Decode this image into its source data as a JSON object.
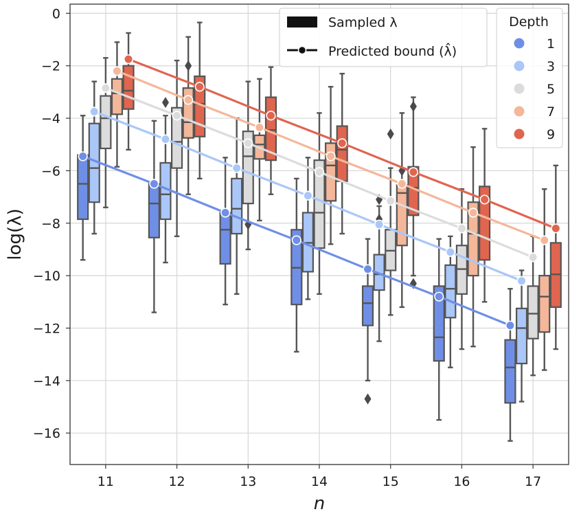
{
  "chart_data": {
    "type": "box",
    "xlabel": "n",
    "ylabel": "log(λ)",
    "categories": [
      11,
      12,
      13,
      14,
      15,
      16,
      17
    ],
    "ylim": [
      -17.2,
      0.35
    ],
    "yticks": [
      0,
      -2,
      -4,
      -6,
      -8,
      -10,
      -12,
      -14,
      -16
    ],
    "ytick_labels": [
      "0",
      "−2",
      "−4",
      "−6",
      "−8",
      "−10",
      "−12",
      "−14",
      "−16"
    ],
    "grid": true,
    "legend_style": {
      "title": "",
      "position": "top-center",
      "items": [
        {
          "label": "Sampled λ",
          "kind": "box"
        },
        {
          "label": "Predicted bound (λ̂)",
          "kind": "line-marker"
        }
      ]
    },
    "legend_depth": {
      "title": "Depth",
      "position": "top-right",
      "items": [
        "1",
        "3",
        "5",
        "7",
        "9"
      ]
    },
    "colors": {
      "depth_1": "#6f8fe6",
      "depth_3": "#aac7f8",
      "depth_5": "#dcdcdc",
      "depth_7": "#f4b79a",
      "depth_9": "#e0654f",
      "box_edge": "#555555"
    },
    "sampled": [
      {
        "depth": 1,
        "boxes": [
          {
            "n": 11,
            "whislo": -9.4,
            "q1": -7.85,
            "med": -6.5,
            "q3": -5.4,
            "whishi": -3.9,
            "fliers": []
          },
          {
            "n": 12,
            "whislo": -11.4,
            "q1": -8.55,
            "med": -7.25,
            "q3": -6.5,
            "whishi": -4.1,
            "fliers": []
          },
          {
            "n": 13,
            "whislo": -11.1,
            "q1": -9.55,
            "med": -8.25,
            "q3": -7.6,
            "whishi": -5.5,
            "fliers": []
          },
          {
            "n": 14,
            "whislo": -12.9,
            "q1": -11.1,
            "med": -9.7,
            "q3": -8.25,
            "whishi": -6.3,
            "fliers": []
          },
          {
            "n": 15,
            "whislo": -14.0,
            "q1": -11.9,
            "med": -11.05,
            "q3": -10.4,
            "whishi": -8.6,
            "fliers": [
              -14.7
            ]
          },
          {
            "n": 16,
            "whislo": -15.5,
            "q1": -13.25,
            "med": -12.35,
            "q3": -10.4,
            "whishi": -8.6,
            "fliers": []
          },
          {
            "n": 17,
            "whislo": -16.3,
            "q1": -14.85,
            "med": -13.5,
            "q3": -12.45,
            "whishi": -10.5,
            "fliers": []
          }
        ]
      },
      {
        "depth": 3,
        "boxes": [
          {
            "n": 11,
            "whislo": -8.4,
            "q1": -7.2,
            "med": -5.9,
            "q3": -4.2,
            "whishi": -2.6,
            "fliers": []
          },
          {
            "n": 12,
            "whislo": -9.5,
            "q1": -7.85,
            "med": -6.9,
            "q3": -5.7,
            "whishi": -3.9,
            "fliers": [
              -3.4
            ]
          },
          {
            "n": 13,
            "whislo": -10.7,
            "q1": -8.4,
            "med": -7.45,
            "q3": -6.3,
            "whishi": -4.0,
            "fliers": []
          },
          {
            "n": 14,
            "whislo": -10.9,
            "q1": -9.85,
            "med": -8.75,
            "q3": -7.6,
            "whishi": -5.5,
            "fliers": []
          },
          {
            "n": 15,
            "whislo": -12.5,
            "q1": -10.55,
            "med": -9.95,
            "q3": -9.2,
            "whishi": -7.35,
            "fliers": [
              -7.1,
              -7.85
            ]
          },
          {
            "n": 16,
            "whislo": -13.5,
            "q1": -11.6,
            "med": -10.5,
            "q3": -9.6,
            "whishi": -8.5,
            "fliers": []
          },
          {
            "n": 17,
            "whislo": -14.8,
            "q1": -13.35,
            "med": -12.0,
            "q3": -11.25,
            "whishi": -9.8,
            "fliers": []
          }
        ]
      },
      {
        "depth": 5,
        "boxes": [
          {
            "n": 11,
            "whislo": -7.4,
            "q1": -5.15,
            "med": -4.0,
            "q3": -3.15,
            "whishi": -1.7,
            "fliers": []
          },
          {
            "n": 12,
            "whislo": -8.5,
            "q1": -5.9,
            "med": -4.9,
            "q3": -3.6,
            "whishi": -1.8,
            "fliers": []
          },
          {
            "n": 13,
            "whislo": -9.0,
            "q1": -7.25,
            "med": -5.45,
            "q3": -4.5,
            "whishi": -2.6,
            "fliers": [
              -8.05
            ]
          },
          {
            "n": 14,
            "whislo": -10.7,
            "q1": -8.95,
            "med": -7.6,
            "q3": -5.6,
            "whishi": -3.8,
            "fliers": []
          },
          {
            "n": 15,
            "whislo": -11.5,
            "q1": -9.8,
            "med": -9.05,
            "q3": -8.25,
            "whishi": -5.9,
            "fliers": [
              -4.6
            ]
          },
          {
            "n": 16,
            "whislo": -12.8,
            "q1": -10.7,
            "med": -9.75,
            "q3": -8.85,
            "whishi": -6.7,
            "fliers": []
          },
          {
            "n": 17,
            "whislo": -13.8,
            "q1": -12.4,
            "med": -11.45,
            "q3": -10.4,
            "whishi": -8.5,
            "fliers": []
          }
        ]
      },
      {
        "depth": 7,
        "boxes": [
          {
            "n": 11,
            "whislo": -5.85,
            "q1": -3.85,
            "med": -3.05,
            "q3": -2.5,
            "whishi": -1.1,
            "fliers": []
          },
          {
            "n": 12,
            "whislo": -6.9,
            "q1": -4.75,
            "med": -4.15,
            "q3": -2.85,
            "whishi": -0.9,
            "fliers": [
              -2.0
            ]
          },
          {
            "n": 13,
            "whislo": -7.9,
            "q1": -5.55,
            "med": -5.0,
            "q3": -4.65,
            "whishi": -2.5,
            "fliers": []
          },
          {
            "n": 14,
            "whislo": -8.8,
            "q1": -7.15,
            "med": -5.8,
            "q3": -4.95,
            "whishi": -2.8,
            "fliers": []
          },
          {
            "n": 15,
            "whislo": -11.2,
            "q1": -8.85,
            "med": -6.85,
            "q3": -6.55,
            "whishi": -3.8,
            "fliers": [
              -6.0
            ]
          },
          {
            "n": 16,
            "whislo": -12.7,
            "q1": -10.0,
            "med": -8.4,
            "q3": -7.2,
            "whishi": -5.1,
            "fliers": []
          },
          {
            "n": 17,
            "whislo": -13.6,
            "q1": -12.15,
            "med": -10.8,
            "q3": -10.0,
            "whishi": -6.7,
            "fliers": []
          }
        ]
      },
      {
        "depth": 9,
        "boxes": [
          {
            "n": 11,
            "whislo": -5.2,
            "q1": -3.65,
            "med": -2.95,
            "q3": -2.0,
            "whishi": -0.75,
            "fliers": []
          },
          {
            "n": 12,
            "whislo": -6.3,
            "q1": -4.7,
            "med": -3.45,
            "q3": -2.4,
            "whishi": -0.35,
            "fliers": []
          },
          {
            "n": 13,
            "whislo": -6.9,
            "q1": -5.6,
            "med": -4.45,
            "q3": -3.2,
            "whishi": -2.05,
            "fliers": []
          },
          {
            "n": 14,
            "whislo": -8.4,
            "q1": -6.4,
            "med": -5.2,
            "q3": -4.3,
            "whishi": -2.3,
            "fliers": []
          },
          {
            "n": 15,
            "whislo": -10.0,
            "q1": -7.7,
            "med": -6.65,
            "q3": -5.85,
            "whishi": -3.2,
            "fliers": [
              -3.55,
              -10.3
            ]
          },
          {
            "n": 16,
            "whislo": -11.0,
            "q1": -9.4,
            "med": -7.0,
            "q3": -6.6,
            "whishi": -4.4,
            "fliers": []
          },
          {
            "n": 17,
            "whislo": -12.8,
            "q1": -11.2,
            "med": -9.95,
            "q3": -8.75,
            "whishi": -5.8,
            "fliers": []
          }
        ]
      }
    ],
    "predicted": [
      {
        "depth": 1,
        "values": [
          -5.45,
          -6.5,
          -7.6,
          -8.65,
          -9.75,
          -10.8,
          -11.9
        ]
      },
      {
        "depth": 3,
        "values": [
          -3.75,
          -4.8,
          -5.9,
          -6.95,
          -8.05,
          -9.1,
          -10.2
        ]
      },
      {
        "depth": 5,
        "values": [
          -2.85,
          -3.9,
          -4.95,
          -6.05,
          -7.15,
          -8.2,
          -9.3
        ]
      },
      {
        "depth": 7,
        "values": [
          -2.2,
          -3.3,
          -4.35,
          -5.45,
          -6.5,
          -7.6,
          -8.65
        ]
      },
      {
        "depth": 9,
        "values": [
          -1.75,
          -2.8,
          -3.9,
          -4.95,
          -6.05,
          -7.1,
          -8.2
        ]
      }
    ]
  }
}
